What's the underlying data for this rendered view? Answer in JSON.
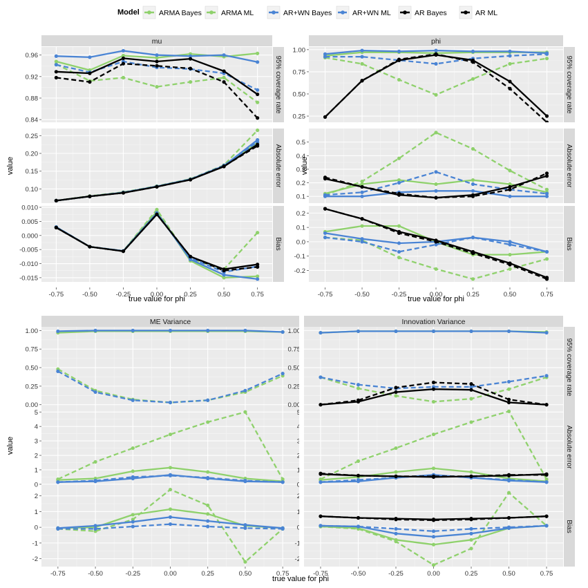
{
  "legend": {
    "title": "Model",
    "entries": [
      {
        "key": "arma_bayes",
        "label": "ARMA Bayes",
        "color": "#8fd16c",
        "dash": false
      },
      {
        "key": "arma_ml",
        "label": "ARMA ML",
        "color": "#8fd16c",
        "dash": true
      },
      {
        "key": "arwn_bayes",
        "label": "AR+WN Bayes",
        "color": "#4a84d4",
        "dash": false
      },
      {
        "key": "arwn_ml",
        "label": "AR+WN ML",
        "color": "#4a84d4",
        "dash": true
      },
      {
        "key": "ar_bayes",
        "label": "AR Bayes",
        "color": "#000000",
        "dash": false
      },
      {
        "key": "ar_ml",
        "label": "AR ML",
        "color": "#000000",
        "dash": true
      }
    ]
  },
  "ylabel": "value",
  "xlabel": "true value for phi",
  "x_ticks": [
    "-0.75",
    "-0.50",
    "-0.25",
    "0.00",
    "0.25",
    "0.50",
    "0.75"
  ],
  "row_strips": [
    "95% coverage rate",
    "Absolute error",
    "Bias"
  ],
  "chart_data": [
    {
      "type": "line",
      "title": "mu",
      "x": [
        -0.75,
        -0.5,
        -0.25,
        0,
        0.25,
        0.5,
        0.75
      ],
      "panels": [
        {
          "row": "95% coverage rate",
          "ylim": [
            0.835,
            0.975
          ],
          "yticks": [
            0.84,
            0.88,
            0.92,
            0.96
          ],
          "ytick_labels": [
            "0.84",
            "0.88",
            "0.92",
            "0.96"
          ],
          "series": {
            "arma_bayes": [
              0.948,
              0.932,
              0.959,
              0.955,
              0.962,
              0.957,
              0.963
            ],
            "arma_ml": [
              0.943,
              0.912,
              0.918,
              0.901,
              0.91,
              0.918,
              0.872
            ],
            "arwn_bayes": [
              0.958,
              0.956,
              0.968,
              0.96,
              0.958,
              0.96,
              0.947
            ],
            "arwn_ml": [
              0.942,
              0.928,
              0.948,
              0.937,
              0.934,
              0.926,
              0.895
            ],
            "ar_bayes": [
              0.929,
              0.926,
              0.954,
              0.948,
              0.953,
              0.93,
              0.887
            ],
            "ar_ml": [
              0.918,
              0.91,
              0.944,
              0.94,
              0.935,
              0.91,
              0.843
            ]
          }
        },
        {
          "row": "Absolute error",
          "ylim": [
            0.06,
            0.27
          ],
          "yticks": [
            0.1,
            0.15,
            0.2,
            0.25
          ],
          "ytick_labels": [
            "0.10",
            "0.15",
            "0.20",
            "0.25"
          ],
          "series": {
            "arma_bayes": [
              0.067,
              0.079,
              0.09,
              0.107,
              0.127,
              0.164,
              0.23
            ],
            "arma_ml": [
              0.067,
              0.08,
              0.091,
              0.108,
              0.128,
              0.167,
              0.265
            ],
            "arwn_bayes": [
              0.067,
              0.079,
              0.09,
              0.107,
              0.127,
              0.165,
              0.238
            ],
            "arwn_ml": [
              0.067,
              0.079,
              0.09,
              0.107,
              0.127,
              0.166,
              0.232
            ],
            "ar_bayes": [
              0.067,
              0.079,
              0.089,
              0.106,
              0.126,
              0.163,
              0.225
            ],
            "ar_ml": [
              0.067,
              0.079,
              0.089,
              0.106,
              0.126,
              0.164,
              0.221
            ]
          }
        },
        {
          "row": "Bias",
          "ylim": [
            -0.0165,
            0.0105
          ],
          "yticks": [
            -0.015,
            -0.01,
            -0.005,
            0.0,
            0.005,
            0.01
          ],
          "ytick_labels": [
            "-0.015",
            "-0.010",
            "-0.005",
            "0.000",
            "0.005",
            "0.010"
          ],
          "series": {
            "arma_bayes": [
              0.003,
              -0.004,
              -0.0055,
              0.0085,
              -0.009,
              -0.015,
              -0.0145
            ],
            "arma_ml": [
              0.003,
              -0.004,
              -0.0055,
              0.0092,
              -0.0085,
              -0.012,
              0.001
            ],
            "arwn_bayes": [
              0.003,
              -0.004,
              -0.0055,
              0.008,
              -0.0085,
              -0.014,
              -0.0155
            ],
            "arwn_ml": [
              0.003,
              -0.004,
              -0.0055,
              0.008,
              -0.008,
              -0.013,
              -0.011
            ],
            "ar_bayes": [
              0.0028,
              -0.004,
              -0.0056,
              0.0075,
              -0.0075,
              -0.012,
              -0.0103
            ],
            "ar_ml": [
              0.0028,
              -0.004,
              -0.0056,
              0.0075,
              -0.0075,
              -0.0125,
              -0.0112
            ]
          }
        }
      ]
    },
    {
      "type": "line",
      "title": "phi",
      "x": [
        -0.75,
        -0.5,
        -0.25,
        0,
        0.25,
        0.5,
        0.75
      ],
      "panels": [
        {
          "row": "95% coverage rate",
          "ylim": [
            0.18,
            1.03
          ],
          "yticks": [
            0.25,
            0.5,
            0.75,
            1.0
          ],
          "ytick_labels": [
            "0.25",
            "0.50",
            "0.75",
            "1.00"
          ],
          "series": {
            "arma_bayes": [
              0.93,
              0.97,
              0.97,
              0.96,
              0.97,
              0.97,
              0.97
            ],
            "arma_ml": [
              0.91,
              0.84,
              0.66,
              0.49,
              0.67,
              0.84,
              0.9
            ],
            "arwn_bayes": [
              0.95,
              0.99,
              0.98,
              0.99,
              0.98,
              0.98,
              0.96
            ],
            "arwn_ml": [
              0.92,
              0.92,
              0.88,
              0.84,
              0.9,
              0.93,
              0.95
            ],
            "ar_bayes": [
              0.24,
              0.65,
              0.88,
              0.94,
              0.88,
              0.64,
              0.25
            ],
            "ar_ml": [
              0.24,
              0.65,
              0.89,
              0.95,
              0.86,
              0.56,
              0.18
            ]
          }
        },
        {
          "row": "Absolute error",
          "ylim": [
            0.05,
            0.6
          ],
          "yticks": [
            0.1,
            0.2,
            0.3,
            0.4,
            0.5
          ],
          "ytick_labels": [
            "0.1",
            "0.2",
            "0.3",
            "0.4",
            "0.5"
          ],
          "series": {
            "arma_bayes": [
              0.12,
              0.19,
              0.22,
              0.19,
              0.22,
              0.19,
              0.13
            ],
            "arma_ml": [
              0.11,
              0.21,
              0.38,
              0.57,
              0.45,
              0.29,
              0.15
            ],
            "arwn_bayes": [
              0.1,
              0.1,
              0.13,
              0.14,
              0.14,
              0.1,
              0.1
            ],
            "arwn_ml": [
              0.11,
              0.13,
              0.2,
              0.28,
              0.19,
              0.15,
              0.12
            ],
            "ar_bayes": [
              0.23,
              0.17,
              0.11,
              0.09,
              0.11,
              0.17,
              0.25
            ],
            "ar_ml": [
              0.24,
              0.17,
              0.12,
              0.09,
              0.1,
              0.15,
              0.27
            ]
          }
        },
        {
          "row": "Bias",
          "ylim": [
            -0.28,
            0.25
          ],
          "yticks": [
            -0.2,
            -0.1,
            0.0,
            0.1,
            0.2
          ],
          "ytick_labels": [
            "-0.2",
            "-0.1",
            "0.0",
            "0.1",
            "0.2"
          ],
          "series": {
            "arma_bayes": [
              0.07,
              0.11,
              0.11,
              0.0,
              -0.09,
              -0.09,
              -0.07
            ],
            "arma_ml": [
              0.03,
              0.01,
              -0.11,
              -0.19,
              -0.26,
              -0.19,
              -0.12
            ],
            "arwn_bayes": [
              0.06,
              0.02,
              -0.01,
              0.0,
              0.03,
              0.0,
              -0.07
            ],
            "arwn_ml": [
              0.03,
              0.0,
              -0.07,
              -0.02,
              0.03,
              -0.02,
              -0.07
            ],
            "ar_bayes": [
              0.23,
              0.16,
              0.07,
              0.01,
              -0.07,
              -0.15,
              -0.25
            ],
            "ar_ml": [
              0.23,
              0.16,
              0.06,
              0.0,
              -0.08,
              -0.16,
              -0.26
            ]
          }
        }
      ]
    },
    {
      "type": "line",
      "title": "ME Variance",
      "x": [
        -0.75,
        -0.5,
        -0.25,
        0,
        0.25,
        0.5,
        0.75
      ],
      "panels": [
        {
          "row": "95% coverage rate",
          "ylim": [
            -0.04,
            1.05
          ],
          "yticks": [
            0.0,
            0.25,
            0.5,
            0.75,
            1.0
          ],
          "ytick_labels": [
            "0.00",
            "0.25",
            "0.50",
            "0.75",
            "1.00"
          ],
          "series": {
            "arma_bayes": [
              0.97,
              0.99,
              0.99,
              0.99,
              0.99,
              0.99,
              0.98
            ],
            "arma_ml": [
              0.48,
              0.19,
              0.07,
              0.03,
              0.06,
              0.17,
              0.39
            ],
            "arwn_bayes": [
              0.99,
              1.0,
              1.0,
              1.0,
              1.0,
              1.0,
              0.98
            ],
            "arwn_ml": [
              0.45,
              0.17,
              0.06,
              0.03,
              0.06,
              0.19,
              0.42
            ]
          }
        },
        {
          "row": "Absolute error",
          "ylim": [
            -0.15,
            5.3
          ],
          "yticks": [
            0,
            1,
            2,
            3,
            4,
            5
          ],
          "ytick_labels": [
            "0",
            "1",
            "2",
            "3",
            "4",
            "5"
          ],
          "series": {
            "arma_bayes": [
              0.3,
              0.4,
              0.9,
              1.15,
              0.85,
              0.4,
              0.2
            ],
            "arma_ml": [
              0.35,
              1.55,
              2.5,
              3.45,
              4.3,
              5.0,
              0.35
            ],
            "arwn_bayes": [
              0.15,
              0.2,
              0.4,
              0.65,
              0.4,
              0.2,
              0.15
            ],
            "arwn_ml": [
              0.15,
              0.25,
              0.5,
              0.6,
              0.45,
              0.25,
              0.15
            ]
          }
        },
        {
          "row": "Bias",
          "ylim": [
            -2.5,
            2.6
          ],
          "yticks": [
            -2,
            -1,
            0,
            1,
            2
          ],
          "ytick_labels": [
            "-2",
            "-1",
            "0",
            "1",
            "2"
          ],
          "series": {
            "arma_bayes": [
              -0.05,
              0.0,
              0.8,
              1.15,
              0.85,
              0.1,
              -0.05
            ],
            "arma_ml": [
              -0.1,
              -0.25,
              0.5,
              2.4,
              1.4,
              -2.2,
              -0.1
            ],
            "arwn_bayes": [
              -0.05,
              0.1,
              0.35,
              0.65,
              0.4,
              0.15,
              -0.05
            ],
            "arwn_ml": [
              -0.1,
              -0.1,
              0.05,
              0.2,
              0.05,
              -0.05,
              -0.1
            ]
          }
        }
      ]
    },
    {
      "type": "line",
      "title": "Innovation Variance",
      "x": [
        -0.75,
        -0.5,
        -0.25,
        0,
        0.25,
        0.5,
        0.75
      ],
      "panels": [
        {
          "row": "95% coverage rate",
          "ylim": [
            -0.04,
            1.05
          ],
          "yticks": [
            0.0,
            0.25,
            0.5,
            0.75,
            1.0
          ],
          "ytick_labels": [
            "0.00",
            "0.25",
            "0.50",
            "0.75",
            "1.00"
          ],
          "series": {
            "arma_bayes": [
              0.97,
              0.99,
              0.99,
              0.99,
              0.99,
              0.99,
              0.98
            ],
            "arma_ml": [
              0.37,
              0.22,
              0.12,
              0.04,
              0.08,
              0.21,
              0.37
            ],
            "arwn_bayes": [
              0.97,
              0.99,
              0.99,
              0.99,
              0.99,
              0.99,
              0.97
            ],
            "arwn_ml": [
              0.37,
              0.27,
              0.22,
              0.24,
              0.24,
              0.31,
              0.39
            ],
            "ar_bayes": [
              0.0,
              0.04,
              0.17,
              0.21,
              0.2,
              0.03,
              0.0
            ],
            "ar_ml": [
              0.0,
              0.06,
              0.23,
              0.3,
              0.28,
              0.07,
              0.0
            ]
          }
        },
        {
          "row": "Absolute error",
          "ylim": [
            -0.15,
            5.3
          ],
          "yticks": [
            0,
            1,
            2,
            3,
            4,
            5
          ],
          "ytick_labels": [
            "0",
            "1",
            "2",
            "3",
            "4",
            "5"
          ],
          "series": {
            "arma_bayes": [
              0.3,
              0.5,
              0.85,
              1.1,
              0.85,
              0.4,
              0.2
            ],
            "arma_ml": [
              0.35,
              1.6,
              2.5,
              3.45,
              4.3,
              5.05,
              0.35
            ],
            "arwn_bayes": [
              0.15,
              0.2,
              0.45,
              0.65,
              0.45,
              0.25,
              0.15
            ],
            "arwn_ml": [
              0.15,
              0.3,
              0.45,
              0.65,
              0.45,
              0.3,
              0.15
            ],
            "ar_bayes": [
              0.7,
              0.6,
              0.55,
              0.5,
              0.55,
              0.6,
              0.7
            ],
            "ar_ml": [
              0.75,
              0.6,
              0.55,
              0.55,
              0.55,
              0.65,
              0.65
            ]
          }
        },
        {
          "row": "Bias",
          "ylim": [
            -2.5,
            2.6
          ],
          "yticks": [
            -2,
            -1,
            0,
            1,
            2
          ],
          "ytick_labels": [
            "-2",
            "-1",
            "0",
            "1",
            "2"
          ],
          "series": {
            "arma_bayes": [
              0.05,
              -0.05,
              -0.8,
              -1.1,
              -0.8,
              -0.05,
              0.1
            ],
            "arma_ml": [
              0.05,
              -0.1,
              -0.9,
              -2.4,
              -1.35,
              2.2,
              0.1
            ],
            "arwn_bayes": [
              0.1,
              0.05,
              -0.4,
              -0.6,
              -0.4,
              -0.05,
              0.1
            ],
            "arwn_ml": [
              0.1,
              0.05,
              -0.1,
              -0.25,
              -0.1,
              0.0,
              0.1
            ],
            "ar_bayes": [
              0.7,
              0.6,
              0.55,
              0.5,
              0.55,
              0.6,
              0.7
            ],
            "ar_ml": [
              0.7,
              0.6,
              0.5,
              0.45,
              0.5,
              0.6,
              0.7
            ]
          }
        }
      ]
    }
  ]
}
